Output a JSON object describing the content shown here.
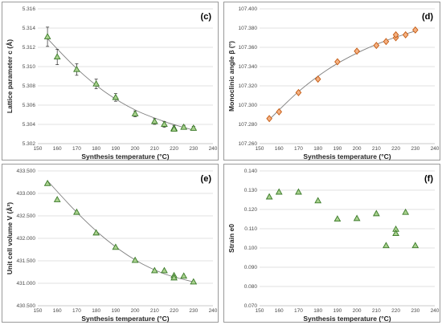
{
  "chart_data": [
    {
      "type": "scatter",
      "panel_label": "(c)",
      "xlabel": "Synthesis temperature (°C)",
      "ylabel": "Lattice parameter c (Å)",
      "xlim": [
        150,
        240
      ],
      "ylim": [
        5.302,
        5.316
      ],
      "xticks": [
        "150",
        "160",
        "170",
        "180",
        "190",
        "200",
        "210",
        "220",
        "230",
        "240"
      ],
      "yticks": [
        "5.302",
        "5.304",
        "5.306",
        "5.308",
        "5.310",
        "5.312",
        "5.314",
        "5.316"
      ],
      "marker": "triangle",
      "marker_fill": "#a9d18e",
      "marker_edge": "#3a7a28",
      "fit_line": true,
      "series": [
        {
          "x": [
            155,
            160,
            170,
            180,
            190,
            200,
            210,
            215,
            220,
            220,
            225,
            230
          ],
          "y": [
            5.3131,
            5.311,
            5.3097,
            5.3082,
            5.3068,
            5.3051,
            5.3043,
            5.304,
            5.3036,
            5.3035,
            5.3037,
            5.3036
          ],
          "err": [
            0.001,
            0.0008,
            0.0006,
            0.0005,
            0.0004,
            0.0003,
            0.0003,
            0.0003,
            0.0003,
            0.0002,
            0.0002,
            0.0002
          ]
        }
      ],
      "fit": [
        [
          155,
          5.3129
        ],
        [
          170,
          5.3098
        ],
        [
          185,
          5.3073
        ],
        [
          200,
          5.3055
        ],
        [
          215,
          5.3043
        ],
        [
          230,
          5.3034
        ]
      ]
    },
    {
      "type": "scatter",
      "panel_label": "(d)",
      "xlabel": "Synthesis temperature (°C)",
      "ylabel": "Monoclinic angle β (°)",
      "xlim": [
        150,
        240
      ],
      "ylim": [
        107.26,
        107.4
      ],
      "xticks": [
        "150",
        "160",
        "170",
        "180",
        "190",
        "200",
        "210",
        "220",
        "230",
        "240"
      ],
      "yticks": [
        "107.260",
        "107.280",
        "107.300",
        "107.320",
        "107.340",
        "107.360",
        "107.380",
        "107.400"
      ],
      "marker": "diamond",
      "marker_fill": "#f4b183",
      "marker_edge": "#c55a11",
      "fit_line": true,
      "series": [
        {
          "x": [
            155,
            160,
            170,
            180,
            190,
            200,
            210,
            215,
            220,
            220,
            225,
            230
          ],
          "y": [
            107.286,
            107.293,
            107.313,
            107.327,
            107.345,
            107.356,
            107.362,
            107.366,
            107.37,
            107.373,
            107.373,
            107.378
          ],
          "err": []
        }
      ],
      "fit": [
        [
          155,
          107.285
        ],
        [
          170,
          107.314
        ],
        [
          185,
          107.337
        ],
        [
          200,
          107.354
        ],
        [
          215,
          107.367
        ],
        [
          230,
          107.377
        ]
      ]
    },
    {
      "type": "scatter",
      "panel_label": "(e)",
      "xlabel": "Synthesis temperature (°C)",
      "ylabel": "Unit cell volume V (Å³)",
      "xlim": [
        150,
        240
      ],
      "ylim": [
        430.5,
        433.5
      ],
      "xticks": [
        "150",
        "160",
        "170",
        "180",
        "190",
        "200",
        "210",
        "220",
        "230",
        "240"
      ],
      "yticks": [
        "430.500",
        "431.000",
        "431.500",
        "432.000",
        "432.500",
        "433.000",
        "433.500"
      ],
      "marker": "triangle",
      "marker_fill": "#a9d18e",
      "marker_edge": "#3a7a28",
      "fit_line": true,
      "series": [
        {
          "x": [
            155,
            160,
            170,
            180,
            190,
            200,
            210,
            215,
            220,
            220,
            225,
            230
          ],
          "y": [
            433.22,
            432.86,
            432.58,
            432.12,
            431.8,
            431.51,
            431.28,
            431.28,
            431.17,
            431.12,
            431.16,
            431.03
          ],
          "err": []
        }
      ],
      "fit": [
        [
          155,
          433.28
        ],
        [
          170,
          432.58
        ],
        [
          185,
          431.98
        ],
        [
          200,
          431.52
        ],
        [
          215,
          431.21
        ],
        [
          230,
          431.03
        ]
      ]
    },
    {
      "type": "scatter",
      "panel_label": "(f)",
      "xlabel": "Synthesis temperature (°C)",
      "ylabel": "Strain e0",
      "xlim": [
        150,
        240
      ],
      "ylim": [
        0.07,
        0.14
      ],
      "xticks": [
        "150",
        "160",
        "170",
        "180",
        "190",
        "200",
        "210",
        "220",
        "230",
        "240"
      ],
      "yticks": [
        "0.070",
        "0.080",
        "0.090",
        "0.100",
        "0.110",
        "0.120",
        "0.130",
        "0.140"
      ],
      "marker": "triangle",
      "marker_fill": "#a9d18e",
      "marker_edge": "#3a7a28",
      "fit_line": false,
      "series": [
        {
          "x": [
            155,
            160,
            170,
            180,
            190,
            200,
            210,
            215,
            220,
            220,
            225,
            230
          ],
          "y": [
            0.1265,
            0.129,
            0.129,
            0.1245,
            0.115,
            0.1153,
            0.1178,
            0.1012,
            0.1097,
            0.1075,
            0.1185,
            0.1012
          ],
          "err": []
        }
      ],
      "fit": []
    }
  ]
}
